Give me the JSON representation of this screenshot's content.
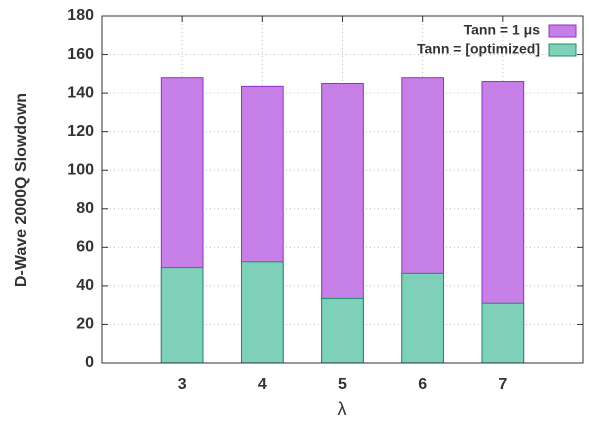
{
  "chart_data": {
    "type": "bar",
    "ylabel": "D-Wave 2000Q Slowdown",
    "xlabel": "λ",
    "x": [
      3,
      4,
      5,
      6,
      7
    ],
    "xlim": [
      2,
      8
    ],
    "xticks": [
      3,
      4,
      5,
      6,
      7
    ],
    "ylim": [
      0,
      180
    ],
    "yticks": [
      0,
      20,
      40,
      60,
      80,
      100,
      120,
      140,
      160,
      180
    ],
    "grid": true,
    "legend": "top-right",
    "series": [
      {
        "name": "Tann = 1 μs",
        "color": "#c77fe8",
        "edge": "#9430c0",
        "values": [
          148,
          143.5,
          145,
          148,
          146
        ]
      },
      {
        "name": "Tann = [optimized]",
        "color": "#7fd0b8",
        "edge": "#1e8c66",
        "values": [
          49.5,
          52.5,
          33.5,
          46.5,
          31
        ]
      }
    ]
  }
}
